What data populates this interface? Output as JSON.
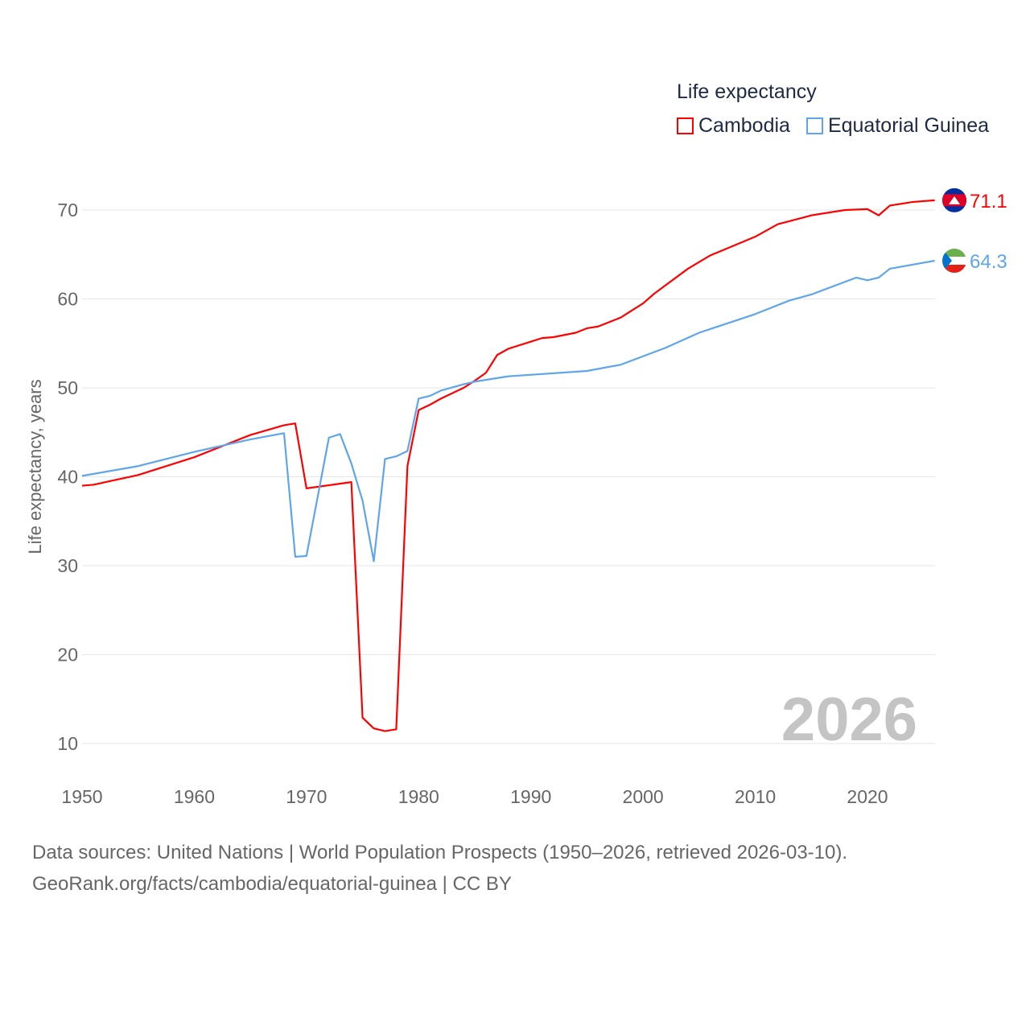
{
  "chart_data": {
    "type": "line",
    "title": "Life expectancy",
    "ylabel": "Life expectancy, years",
    "xlabel": "",
    "xlim": [
      1950,
      2026
    ],
    "ylim": [
      5,
      75
    ],
    "xticks": [
      "1950",
      "1960",
      "1970",
      "1980",
      "1990",
      "2000",
      "2010",
      "2020"
    ],
    "yticks": [
      "10",
      "20",
      "30",
      "40",
      "50",
      "60",
      "70"
    ],
    "grid": true,
    "legend_placement": "top-right",
    "year_label": "2026",
    "series": [
      {
        "name": "Cambodia",
        "color": "#ff0000",
        "end_label": "71.1",
        "x": [
          1950,
          1951,
          1955,
          1960,
          1965,
          1968,
          1969,
          1970,
          1974,
          1975,
          1976,
          1977,
          1978,
          1979,
          1980,
          1981,
          1982,
          1983,
          1984,
          1985,
          1986,
          1987,
          1988,
          1990,
          1991,
          1992,
          1994,
          1995,
          1996,
          1998,
          2000,
          2001,
          2004,
          2006,
          2010,
          2012,
          2015,
          2018,
          2020,
          2021,
          2022,
          2024,
          2026
        ],
        "y": [
          39.0,
          39.1,
          40.2,
          42.2,
          44.7,
          45.8,
          46.0,
          38.7,
          39.4,
          12.9,
          11.7,
          11.4,
          11.6,
          41.2,
          47.5,
          48.1,
          48.8,
          49.4,
          50.0,
          50.8,
          51.7,
          53.7,
          54.4,
          55.2,
          55.6,
          55.7,
          56.2,
          56.7,
          56.9,
          57.9,
          59.5,
          60.6,
          63.4,
          64.9,
          67.0,
          68.4,
          69.4,
          70.0,
          70.1,
          69.4,
          70.5,
          70.9,
          71.1
        ]
      },
      {
        "name": "Equatorial Guinea",
        "color": "#5ea5ec",
        "end_label": "64.3",
        "x": [
          1950,
          1955,
          1960,
          1965,
          1968,
          1969,
          1970,
          1972,
          1973,
          1974,
          1975,
          1976,
          1977,
          1978,
          1979,
          1980,
          1981,
          1982,
          1984,
          1985,
          1988,
          1995,
          1998,
          2002,
          2005,
          2010,
          2013,
          2015,
          2019,
          2020,
          2021,
          2022,
          2026
        ],
        "y": [
          40.1,
          41.2,
          42.8,
          44.2,
          44.9,
          31.0,
          31.1,
          44.4,
          44.8,
          41.5,
          37.3,
          30.5,
          42.0,
          42.3,
          42.9,
          48.8,
          49.1,
          49.7,
          50.4,
          50.7,
          51.3,
          51.9,
          52.6,
          54.5,
          56.2,
          58.3,
          59.8,
          60.5,
          62.4,
          62.1,
          62.4,
          63.4,
          64.3
        ]
      }
    ]
  },
  "footer": {
    "line1": "Data sources: United Nations | World Population Prospects (1950–2026, retrieved 2026-03-10).",
    "line2": "GeoRank.org/facts/cambodia/equatorial-guinea | CC BY"
  }
}
